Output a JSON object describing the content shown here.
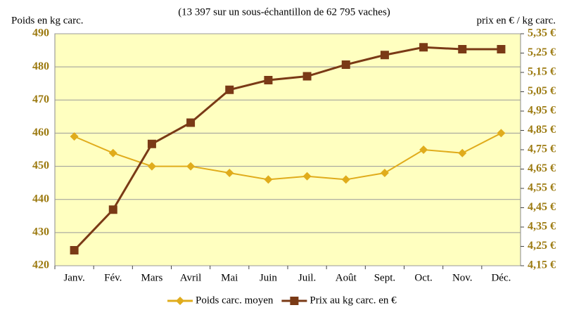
{
  "chart_data": {
    "type": "line",
    "subtitle": "(13 397 sur un sous-échantillon de 62 795 vaches)",
    "y_label": "Poids en kg carc.",
    "y2_label": "prix en € / kg carc.",
    "categories": [
      "Janv.",
      "Fév.",
      "Mars",
      "Avril",
      "Mai",
      "Juin",
      "Juil.",
      "Août",
      "Sept.",
      "Oct.",
      "Nov.",
      "Déc."
    ],
    "series": [
      {
        "name": "Poids carc. moyen",
        "color": "#e0ac1c",
        "marker": "diamond",
        "values": [
          459,
          454,
          450,
          450,
          448,
          446,
          447,
          446,
          448,
          455,
          454,
          460
        ]
      },
      {
        "name": "Prix au kg carc. en €",
        "color": "#7a3a16",
        "marker": "square",
        "axis": "y2",
        "values": [
          4.23,
          4.44,
          4.78,
          4.89,
          5.06,
          5.11,
          5.13,
          5.19,
          5.24,
          5.28,
          5.27,
          5.27
        ]
      }
    ],
    "ylim": [
      420,
      490
    ],
    "yticks": [
      420,
      430,
      440,
      450,
      460,
      470,
      480,
      490
    ],
    "y2lim": [
      4.15,
      5.35
    ],
    "y2ticks": [
      {
        "value": 4.15,
        "label": "4,15 €"
      },
      {
        "value": 4.25,
        "label": "4,25 €"
      },
      {
        "value": 4.35,
        "label": "4,35 €"
      },
      {
        "value": 4.45,
        "label": "4,45 €"
      },
      {
        "value": 4.55,
        "label": "4,55 €"
      },
      {
        "value": 4.65,
        "label": "4,65 €"
      },
      {
        "value": 4.75,
        "label": "4,75 €"
      },
      {
        "value": 4.85,
        "label": "4,85 €"
      },
      {
        "value": 4.95,
        "label": "4,95 €"
      },
      {
        "value": 5.05,
        "label": "5,05 €"
      },
      {
        "value": 5.15,
        "label": "5,15 €"
      },
      {
        "value": 5.25,
        "label": "5,25 €"
      },
      {
        "value": 5.35,
        "label": "5,35 €"
      }
    ],
    "grid": true,
    "legend": "bottom"
  }
}
